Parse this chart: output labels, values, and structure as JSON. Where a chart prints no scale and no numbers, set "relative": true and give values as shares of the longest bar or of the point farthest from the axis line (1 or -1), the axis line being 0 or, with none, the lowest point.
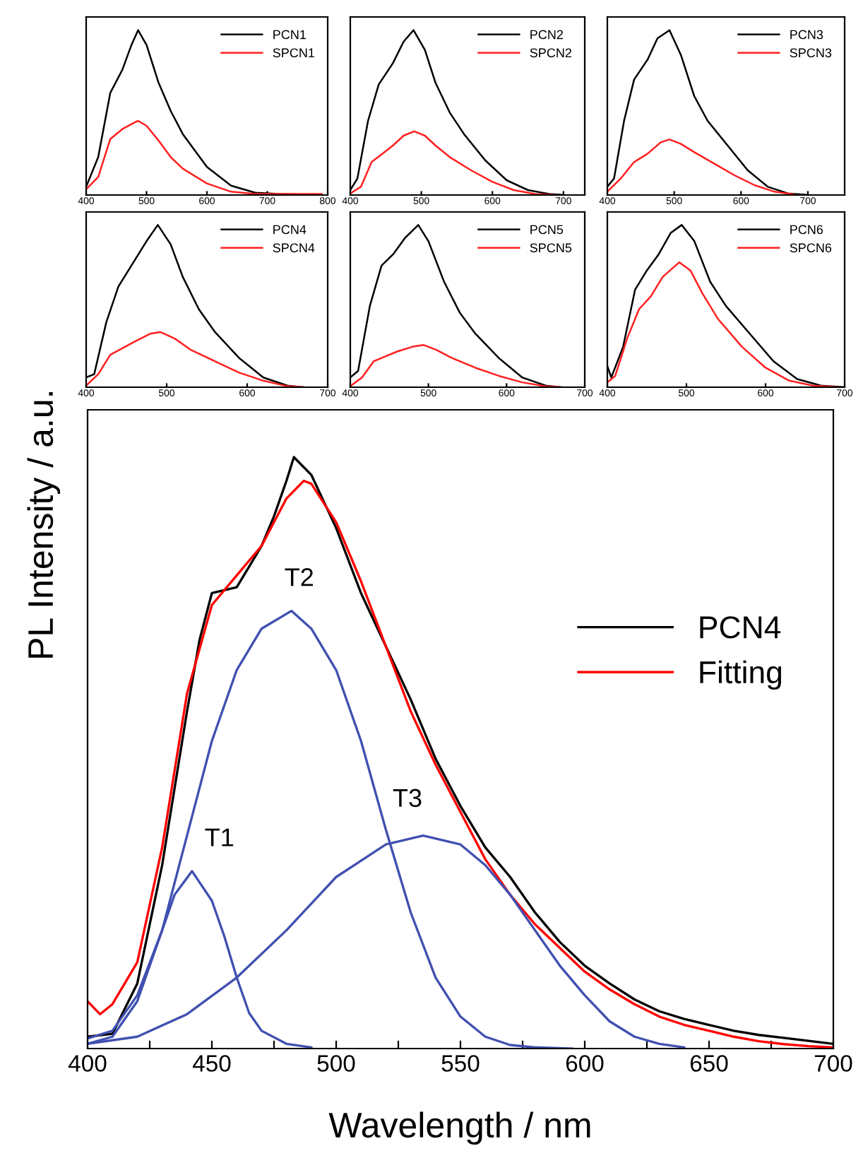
{
  "chart_data": [
    {
      "type": "line",
      "relative": true,
      "legend": "top right",
      "xlim": [
        400,
        800
      ],
      "xticks": [
        400,
        500,
        600,
        700,
        800
      ],
      "series": [
        {
          "name": "PCN1",
          "color": "#000000",
          "x": [
            400,
            420,
            440,
            460,
            475,
            486,
            500,
            520,
            540,
            560,
            600,
            640,
            680,
            720,
            790
          ],
          "values": [
            0.05,
            0.23,
            0.62,
            0.76,
            0.91,
            1.0,
            0.91,
            0.68,
            0.51,
            0.37,
            0.17,
            0.057,
            0.014,
            0.006,
            0
          ]
        },
        {
          "name": "SPCN1",
          "color": "#ff2020",
          "x": [
            400,
            420,
            440,
            460,
            480,
            486,
            500,
            520,
            540,
            560,
            600,
            640,
            680,
            790
          ],
          "values": [
            0.034,
            0.11,
            0.34,
            0.4,
            0.44,
            0.45,
            0.42,
            0.33,
            0.23,
            0.16,
            0.07,
            0.02,
            0.006,
            0.006
          ]
        }
      ]
    },
    {
      "type": "line",
      "relative": true,
      "legend": "top right",
      "xlim": [
        400,
        730
      ],
      "xticks": [
        400,
        500,
        600,
        700
      ],
      "series": [
        {
          "name": "PCN2",
          "color": "#000000",
          "x": [
            400,
            410,
            425,
            440,
            460,
            475,
            489,
            505,
            520,
            540,
            560,
            590,
            620,
            650,
            680,
            700
          ],
          "values": [
            0.03,
            0.1,
            0.45,
            0.67,
            0.8,
            0.93,
            1.0,
            0.88,
            0.68,
            0.5,
            0.37,
            0.21,
            0.09,
            0.03,
            0.006,
            0
          ]
        },
        {
          "name": "SPCN2",
          "color": "#ff2020",
          "x": [
            400,
            415,
            430,
            445,
            460,
            475,
            490,
            505,
            520,
            540,
            570,
            600,
            630,
            660,
            690
          ],
          "values": [
            0.01,
            0.05,
            0.2,
            0.25,
            0.3,
            0.36,
            0.386,
            0.36,
            0.3,
            0.23,
            0.15,
            0.08,
            0.03,
            0.006,
            0
          ]
        }
      ]
    },
    {
      "type": "line",
      "relative": true,
      "legend": "top right",
      "xlim": [
        400,
        755
      ],
      "xticks": [
        400,
        500,
        600,
        700
      ],
      "series": [
        {
          "name": "PCN3",
          "color": "#000000",
          "x": [
            400,
            410,
            425,
            440,
            460,
            475,
            493,
            510,
            530,
            550,
            580,
            610,
            640,
            670,
            700
          ],
          "values": [
            0.05,
            0.1,
            0.45,
            0.7,
            0.82,
            0.95,
            1.0,
            0.85,
            0.6,
            0.45,
            0.3,
            0.15,
            0.05,
            0.01,
            0
          ]
        },
        {
          "name": "SPCN3",
          "color": "#ff2020",
          "x": [
            400,
            420,
            440,
            460,
            480,
            493,
            510,
            530,
            560,
            590,
            620,
            650,
            680
          ],
          "values": [
            0.02,
            0.1,
            0.2,
            0.25,
            0.32,
            0.337,
            0.31,
            0.26,
            0.19,
            0.12,
            0.06,
            0.02,
            0.003
          ]
        }
      ]
    },
    {
      "type": "line",
      "relative": true,
      "legend": "top right",
      "xlim": [
        400,
        700
      ],
      "xticks": [
        400,
        500,
        600,
        700
      ],
      "series": [
        {
          "name": "PCN4",
          "color": "#000000",
          "x": [
            400,
            410,
            425,
            440,
            460,
            475,
            489,
            505,
            520,
            540,
            560,
            590,
            620,
            650,
            670
          ],
          "values": [
            0.06,
            0.08,
            0.4,
            0.62,
            0.78,
            0.9,
            1.0,
            0.88,
            0.68,
            0.48,
            0.34,
            0.18,
            0.06,
            0.01,
            0
          ]
        },
        {
          "name": "SPCN4",
          "color": "#ff2020",
          "x": [
            400,
            415,
            430,
            445,
            460,
            480,
            492,
            510,
            530,
            560,
            590,
            620,
            650,
            670
          ],
          "values": [
            0.01,
            0.08,
            0.2,
            0.24,
            0.28,
            0.33,
            0.34,
            0.3,
            0.23,
            0.16,
            0.09,
            0.04,
            0.006,
            0
          ]
        }
      ]
    },
    {
      "type": "line",
      "relative": true,
      "legend": "top right",
      "xlim": [
        400,
        700
      ],
      "xticks": [
        400,
        500,
        600,
        700
      ],
      "series": [
        {
          "name": "PCN5",
          "color": "#000000",
          "x": [
            400,
            410,
            425,
            440,
            455,
            470,
            487,
            500,
            520,
            540,
            560,
            590,
            620,
            650,
            670
          ],
          "values": [
            0.06,
            0.1,
            0.5,
            0.75,
            0.82,
            0.92,
            1.0,
            0.9,
            0.65,
            0.46,
            0.33,
            0.18,
            0.06,
            0.01,
            0
          ]
        },
        {
          "name": "SPCN5",
          "color": "#ff2020",
          "x": [
            400,
            415,
            430,
            445,
            460,
            480,
            494,
            510,
            530,
            560,
            590,
            620,
            650,
            670
          ],
          "values": [
            0.006,
            0.06,
            0.16,
            0.19,
            0.22,
            0.25,
            0.26,
            0.23,
            0.18,
            0.12,
            0.07,
            0.03,
            0.005,
            0
          ]
        }
      ]
    },
    {
      "type": "line",
      "relative": true,
      "legend": "top right",
      "xlim": [
        400,
        700
      ],
      "xticks": [
        400,
        500,
        600,
        700
      ],
      "series": [
        {
          "name": "PCN6",
          "color": "#000000",
          "x": [
            400,
            405,
            420,
            435,
            450,
            465,
            480,
            494,
            510,
            530,
            550,
            580,
            610,
            640,
            670,
            700
          ],
          "values": [
            0.13,
            0.06,
            0.25,
            0.6,
            0.72,
            0.82,
            0.95,
            1.0,
            0.9,
            0.65,
            0.5,
            0.33,
            0.16,
            0.05,
            0.01,
            0
          ]
        },
        {
          "name": "SPCN6",
          "color": "#ff2020",
          "x": [
            400,
            410,
            425,
            440,
            455,
            470,
            491,
            505,
            520,
            540,
            570,
            600,
            630,
            660,
            690
          ],
          "values": [
            0.03,
            0.07,
            0.3,
            0.48,
            0.56,
            0.68,
            0.77,
            0.72,
            0.58,
            0.42,
            0.25,
            0.12,
            0.04,
            0.01,
            0
          ]
        }
      ]
    },
    {
      "type": "line",
      "relative": true,
      "legend": "right",
      "xlabel": "Wavelength / nm",
      "ylabel": "PL Intensity / a.u.",
      "xlim": [
        400,
        700
      ],
      "xticks": [
        400,
        {
          "value": 425,
          "label": null
        },
        450,
        {
          "value": 475,
          "label": null
        },
        500,
        {
          "value": 525,
          "label": null
        },
        550,
        {
          "value": 575,
          "label": null
        },
        600,
        {
          "value": 625,
          "label": null
        },
        650,
        {
          "value": 675,
          "label": null
        },
        700
      ],
      "annotations": [
        "T1",
        "T2",
        "T3"
      ],
      "series": [
        {
          "name": "PCN4",
          "color": "#000000",
          "x": [
            400,
            410,
            420,
            430,
            440,
            445,
            450,
            460,
            470,
            475,
            480,
            483,
            490,
            500,
            510,
            520,
            530,
            540,
            550,
            560,
            570,
            580,
            590,
            600,
            610,
            620,
            630,
            640,
            650,
            660,
            670,
            680,
            690,
            700
          ],
          "values": [
            0.02,
            0.025,
            0.11,
            0.31,
            0.57,
            0.69,
            0.77,
            0.78,
            0.85,
            0.9,
            0.96,
            1.0,
            0.97,
            0.88,
            0.77,
            0.68,
            0.59,
            0.49,
            0.41,
            0.34,
            0.29,
            0.23,
            0.18,
            0.14,
            0.11,
            0.083,
            0.063,
            0.05,
            0.04,
            0.03,
            0.023,
            0.018,
            0.013,
            0.008
          ]
        },
        {
          "name": "Fitting",
          "color": "#ff0000",
          "x": [
            400,
            405,
            410,
            420,
            430,
            440,
            450,
            460,
            470,
            480,
            487,
            490,
            500,
            510,
            520,
            530,
            540,
            550,
            560,
            570,
            580,
            590,
            600,
            610,
            620,
            630,
            640,
            650,
            660,
            670,
            680,
            690,
            700
          ],
          "values": [
            0.08,
            0.058,
            0.075,
            0.146,
            0.34,
            0.6,
            0.75,
            0.8,
            0.85,
            0.93,
            0.96,
            0.955,
            0.89,
            0.79,
            0.68,
            0.57,
            0.48,
            0.4,
            0.32,
            0.26,
            0.21,
            0.17,
            0.13,
            0.1,
            0.075,
            0.054,
            0.04,
            0.03,
            0.02,
            0.0125,
            0.0075,
            0.004,
            0.002
          ]
        },
        {
          "color": "#4050b0",
          "x": [
            400,
            410,
            420,
            430,
            435,
            442,
            450,
            455,
            460,
            465,
            470,
            480,
            490
          ],
          "values": [
            0.017,
            0.03,
            0.09,
            0.2,
            0.26,
            0.3,
            0.25,
            0.19,
            0.12,
            0.06,
            0.03,
            0.008,
            0.002
          ]
        },
        {
          "color": "#4050b0",
          "x": [
            400,
            410,
            420,
            430,
            440,
            450,
            460,
            470,
            482,
            490,
            500,
            510,
            520,
            530,
            540,
            550,
            560,
            570,
            580,
            595
          ],
          "values": [
            0.008,
            0.02,
            0.08,
            0.2,
            0.36,
            0.52,
            0.64,
            0.71,
            0.74,
            0.71,
            0.64,
            0.52,
            0.37,
            0.23,
            0.12,
            0.054,
            0.02,
            0.006,
            0.002,
            0
          ]
        },
        {
          "color": "#4050b0",
          "x": [
            400,
            420,
            440,
            460,
            480,
            500,
            520,
            535,
            550,
            560,
            570,
            580,
            590,
            600,
            610,
            620,
            630,
            640
          ],
          "values": [
            0.008,
            0.02,
            0.058,
            0.12,
            0.2,
            0.29,
            0.345,
            0.36,
            0.345,
            0.31,
            0.26,
            0.2,
            0.14,
            0.09,
            0.046,
            0.02,
            0.008,
            0.002
          ]
        }
      ]
    }
  ]
}
